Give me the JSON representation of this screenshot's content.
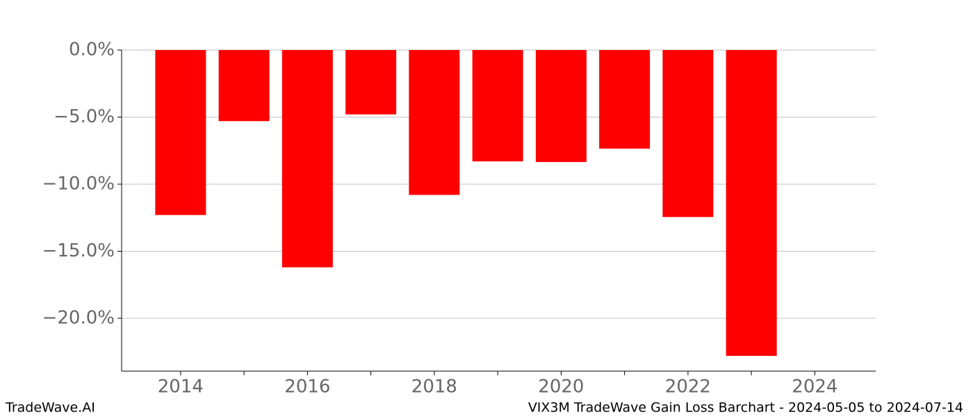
{
  "chart_data": {
    "type": "bar",
    "x": [
      2014,
      2015,
      2016,
      2017,
      2018,
      2019,
      2020,
      2021,
      2022,
      2023
    ],
    "values": [
      -12.3,
      -5.3,
      -16.2,
      -4.8,
      -10.8,
      -8.3,
      -8.35,
      -7.35,
      -12.45,
      -22.8
    ],
    "color": "#ff0000",
    "xlim": [
      2013.07,
      2024.96
    ],
    "xticks": [
      2014,
      2016,
      2018,
      2020,
      2022,
      2024
    ],
    "xminor_ticks": [
      2015,
      2017,
      2019,
      2021,
      2023
    ],
    "ylim": [
      -23.94,
      0
    ],
    "yticks": [
      {
        "value": 0,
        "label": "0.0%"
      },
      {
        "value": -5,
        "label": "−5.0%"
      },
      {
        "value": -10,
        "label": "−10.0%"
      },
      {
        "value": -15,
        "label": "−15.0%"
      },
      {
        "value": -20,
        "label": "−20.0%"
      }
    ],
    "grid": true,
    "bar_width": 0.8
  },
  "footer": {
    "left": "TradeWave.AI",
    "right": "VIX3M TradeWave Gain Loss Barchart - 2024-05-05 to 2024-07-14"
  }
}
